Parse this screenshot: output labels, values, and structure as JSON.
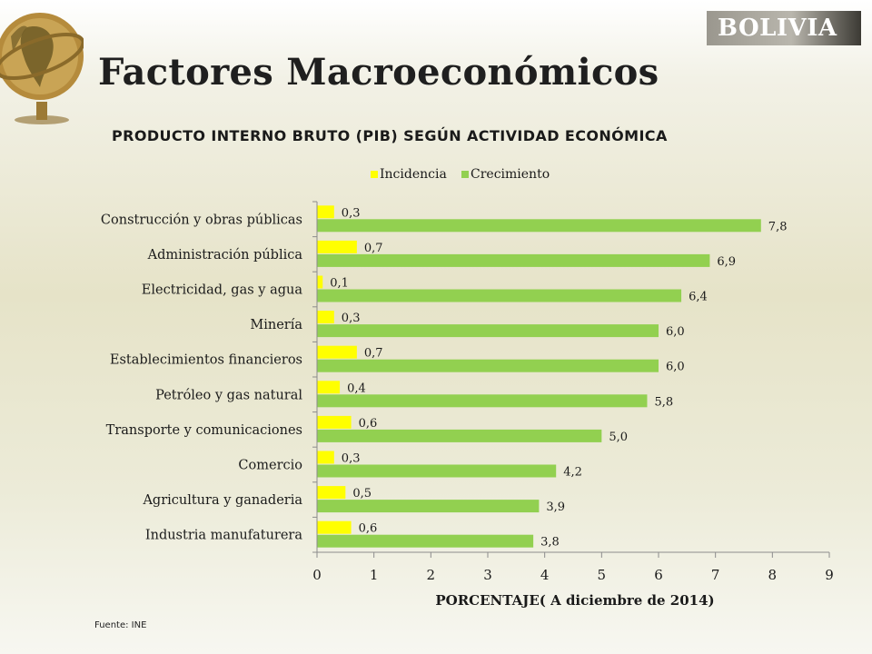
{
  "header": {
    "country": "BOLIVIA",
    "title": "Factores Macroeconómicos"
  },
  "source": "Fuente: INE",
  "colors": {
    "incidencia": "#ffff00",
    "crecimiento": "#92d050",
    "badge_text": "#ffffff",
    "title_text": "#1f1f1f"
  },
  "icons": {
    "logo": "globe-icon"
  },
  "chart_data": {
    "type": "bar",
    "orientation": "horizontal",
    "title": "PRODUCTO INTERNO BRUTO (PIB) SEGÚN ACTIVIDAD ECONÓMICA",
    "xlabel": "PORCENTAJE( A diciembre de 2014)",
    "ylabel": "",
    "xlim": [
      0,
      9
    ],
    "xticks": [
      "0",
      "1",
      "2",
      "3",
      "4",
      "5",
      "6",
      "7",
      "8",
      "9"
    ],
    "grid": false,
    "legend_position": "top",
    "categories": [
      "Construcción y obras públicas",
      "Administración pública",
      "Electricidad, gas y agua",
      "Minería",
      "Establecimientos financieros",
      "Petróleo y gas natural",
      "Transporte y comunicaciones",
      "Comercio",
      "Agricultura y ganaderia",
      "Industria manufaturera"
    ],
    "series": [
      {
        "name": "Incidencia",
        "color": "#ffff00",
        "values": [
          0.3,
          0.7,
          0.1,
          0.3,
          0.7,
          0.4,
          0.6,
          0.3,
          0.5,
          0.6
        ],
        "labels": [
          "0,3",
          "0,7",
          "0,1",
          "0,3",
          "0,7",
          "0,4",
          "0,6",
          "0,3",
          "0,5",
          "0,6"
        ]
      },
      {
        "name": "Crecimiento",
        "color": "#92d050",
        "values": [
          7.8,
          6.9,
          6.4,
          6.0,
          6.0,
          5.8,
          5.0,
          4.2,
          3.9,
          3.8
        ],
        "labels": [
          "7,8",
          "6,9",
          "6,4",
          "6,0",
          "6,0",
          "5,8",
          "5,0",
          "4,2",
          "3,9",
          "3,8"
        ]
      }
    ]
  }
}
